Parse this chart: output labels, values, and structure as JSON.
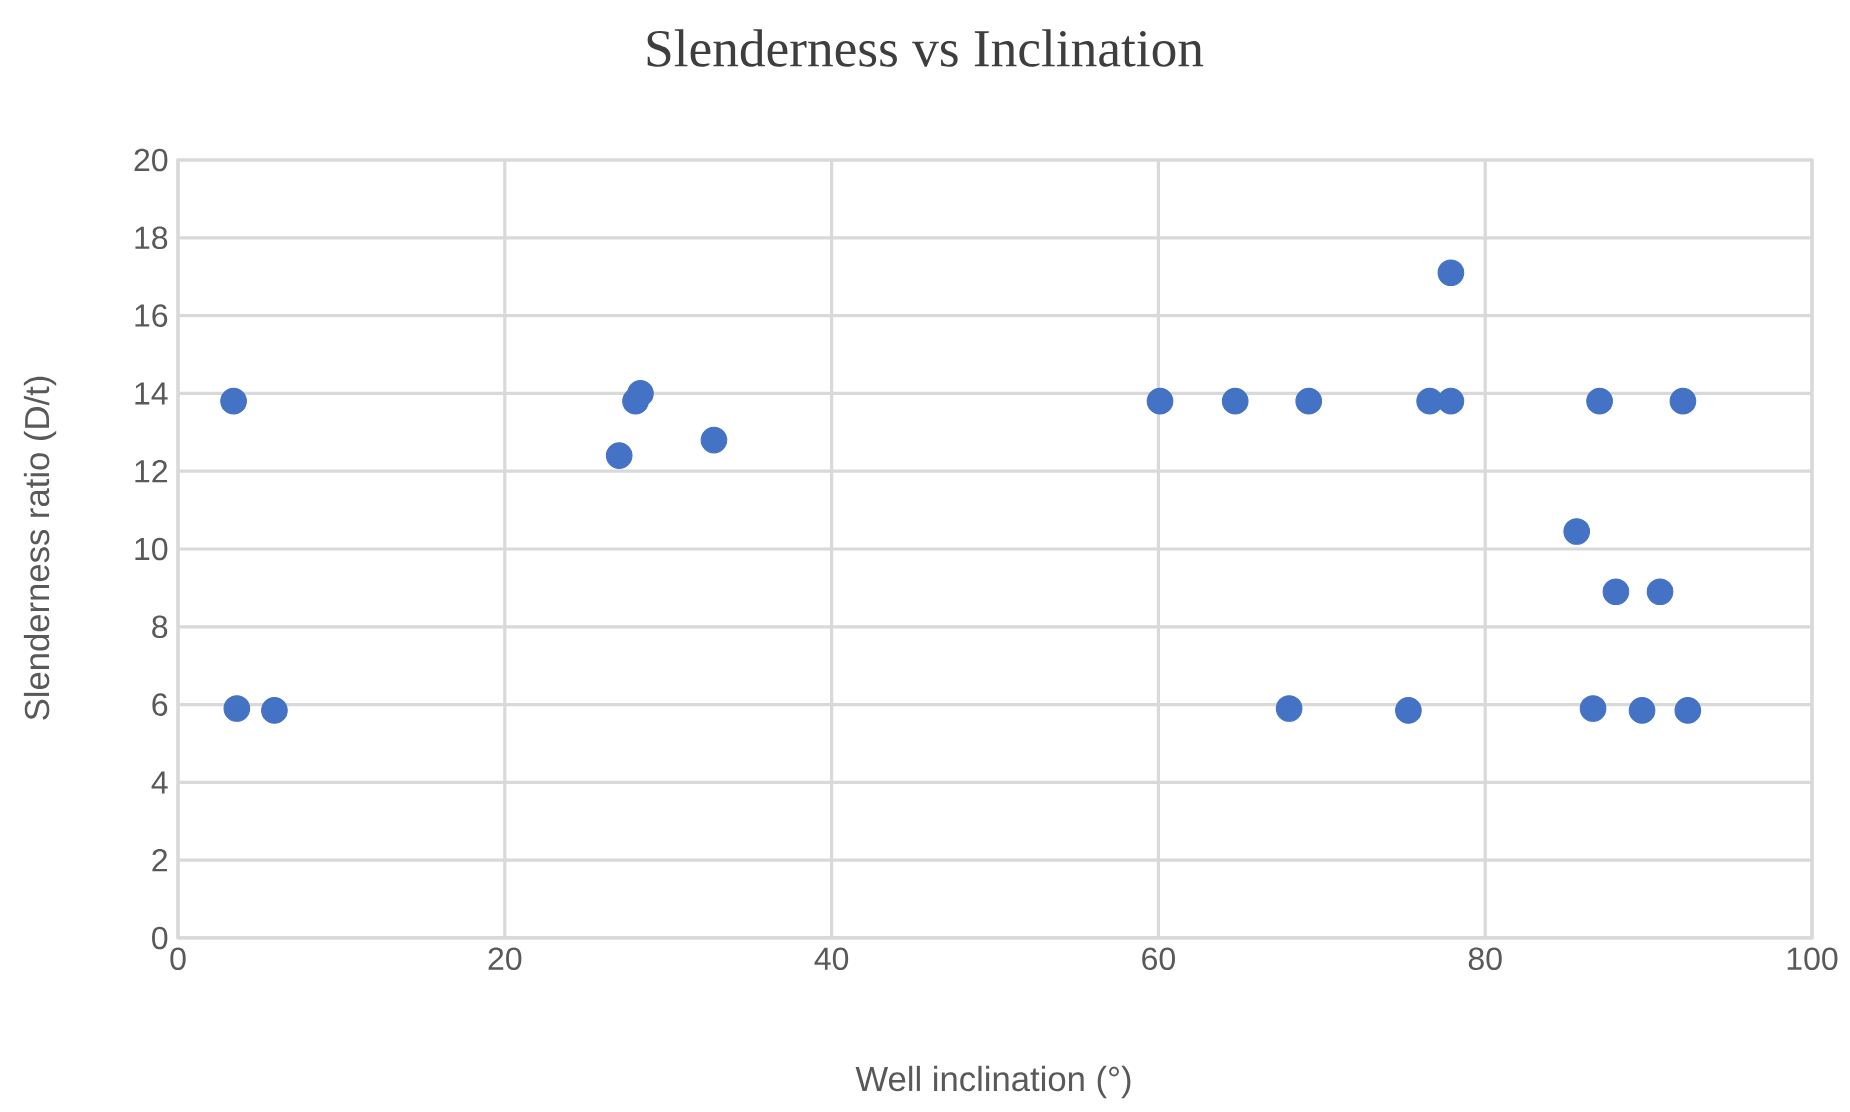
{
  "chart_data": {
    "type": "scatter",
    "title": "Slenderness  vs Inclination",
    "xlabel": "Well inclination (°)",
    "ylabel": "Slenderness ratio (D/t)",
    "x": [
      3.4,
      3.6,
      5.9,
      27.0,
      28.0,
      28.3,
      32.8,
      60.1,
      64.7,
      69.2,
      76.6,
      77.9,
      77.9,
      87.0,
      92.1,
      85.6,
      88.0,
      90.7,
      68.0,
      75.3,
      86.6,
      89.6,
      92.4
    ],
    "values": [
      13.8,
      5.9,
      5.85,
      12.4,
      13.8,
      14.0,
      12.8,
      13.8,
      13.8,
      13.8,
      13.8,
      13.8,
      17.1,
      13.8,
      13.8,
      10.45,
      8.9,
      8.9,
      5.9,
      5.85,
      5.9,
      5.85,
      5.85
    ],
    "color": "#4472c4",
    "marker": "circle",
    "xlim": [
      0,
      100
    ],
    "ylim": [
      0,
      20
    ],
    "xticks": [
      0,
      20,
      40,
      60,
      80,
      100
    ],
    "yticks": [
      0,
      2,
      4,
      6,
      8,
      10,
      12,
      14,
      16,
      18,
      20
    ],
    "grid": true
  }
}
